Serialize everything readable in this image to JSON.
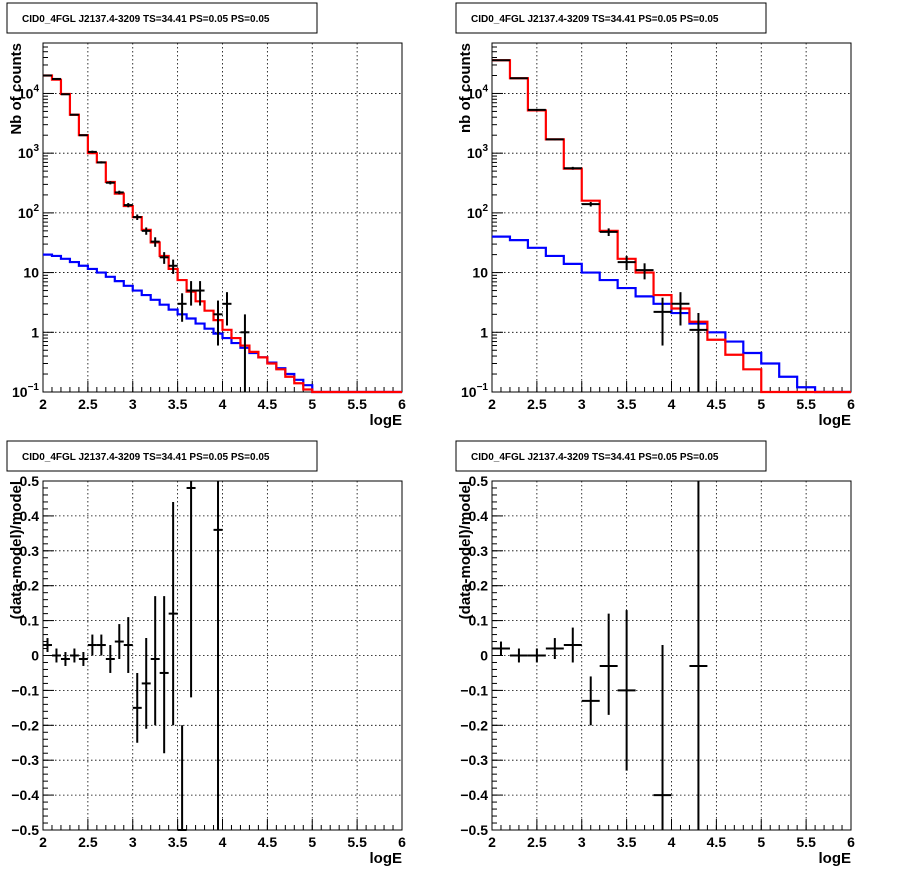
{
  "chart_data": [
    {
      "type": "line",
      "title": "CID0_4FGL J2137.4-3209 TS=34.41 PS=0.05 PS=0.05",
      "xlabel": "logE",
      "ylabel": "Nb of counts",
      "log_y": true,
      "xlim": [
        2,
        6
      ],
      "ylim": [
        0.1,
        70000
      ],
      "grid": true,
      "x_ticks": [
        "2",
        "2.5",
        "3",
        "3.5",
        "4",
        "4.5",
        "5",
        "5.5",
        "6"
      ],
      "y_ticks": [
        {
          "v": 0.1,
          "m": "10",
          "e": "−1"
        },
        {
          "v": 1,
          "m": "1",
          "e": ""
        },
        {
          "v": 10,
          "m": "10",
          "e": ""
        },
        {
          "v": 100,
          "m": "10",
          "e": "2"
        },
        {
          "v": 1000,
          "m": "10",
          "e": "3"
        },
        {
          "v": 10000,
          "m": "10",
          "e": "4"
        }
      ],
      "bin_edges": [
        2,
        2.1,
        2.2,
        2.3,
        2.4,
        2.5,
        2.6,
        2.7,
        2.8,
        2.9,
        3,
        3.1,
        3.2,
        3.3,
        3.4,
        3.5,
        3.6,
        3.7,
        3.8,
        3.9,
        4,
        4.1,
        4.2,
        4.3,
        4.4,
        4.5,
        4.6,
        4.7,
        4.8,
        4.9,
        5,
        5.1,
        5.2,
        5.3,
        5.4,
        5.5,
        5.6,
        5.7,
        5.8,
        5.9,
        6
      ],
      "series": [
        {
          "role": "total_model",
          "color": "#ff0000",
          "values": [
            20000,
            17000,
            9800,
            4400,
            2000,
            1000,
            700,
            330,
            210,
            130,
            85,
            52,
            32,
            19,
            11.5,
            7.5,
            4.8,
            3.3,
            2.3,
            1.6,
            1.1,
            0.8,
            0.6,
            0.47,
            0.38,
            0.3,
            0.24,
            0.18,
            0.14,
            0.11,
            0.1,
            0.1,
            0.1,
            0.1,
            0.1,
            0.1,
            0.1,
            0.1,
            0.1,
            0.1
          ]
        },
        {
          "role": "background_model",
          "color": "#0000ff",
          "values": [
            20,
            19,
            17,
            15,
            13,
            11.5,
            10,
            8.5,
            7.2,
            6,
            5,
            4.2,
            3.5,
            2.9,
            2.4,
            2.0,
            1.7,
            1.4,
            1.15,
            0.95,
            0.8,
            0.66,
            0.55,
            0.45,
            0.38,
            0.31,
            0.25,
            0.2,
            0.16,
            0.13,
            0.1,
            0.1,
            0.1,
            0.1,
            0.1,
            0.1,
            0.1,
            0.1,
            0.1,
            0.1
          ]
        }
      ],
      "points": [
        {
          "x": 2.05,
          "y": 20000,
          "ylo": 19500,
          "yhi": 20500
        },
        {
          "x": 2.15,
          "y": 17500,
          "ylo": 17000,
          "yhi": 18000
        },
        {
          "x": 2.25,
          "y": 9700,
          "ylo": 9500,
          "yhi": 9900
        },
        {
          "x": 2.35,
          "y": 4400,
          "ylo": 4300,
          "yhi": 4500
        },
        {
          "x": 2.45,
          "y": 2000,
          "ylo": 1950,
          "yhi": 2050
        },
        {
          "x": 2.55,
          "y": 1050,
          "ylo": 1000,
          "yhi": 1100
        },
        {
          "x": 2.65,
          "y": 700,
          "ylo": 670,
          "yhi": 730
        },
        {
          "x": 2.75,
          "y": 320,
          "ylo": 300,
          "yhi": 340
        },
        {
          "x": 2.85,
          "y": 220,
          "ylo": 205,
          "yhi": 235
        },
        {
          "x": 2.95,
          "y": 135,
          "ylo": 124,
          "yhi": 146
        },
        {
          "x": 3.05,
          "y": 85,
          "ylo": 76,
          "yhi": 94
        },
        {
          "x": 3.15,
          "y": 50,
          "ylo": 43,
          "yhi": 57
        },
        {
          "x": 3.25,
          "y": 33,
          "ylo": 27,
          "yhi": 39
        },
        {
          "x": 3.35,
          "y": 18,
          "ylo": 14,
          "yhi": 22
        },
        {
          "x": 3.45,
          "y": 13,
          "ylo": 9.5,
          "yhi": 16.5
        },
        {
          "x": 3.55,
          "y": 3,
          "ylo": 1.5,
          "yhi": 4.5
        },
        {
          "x": 3.65,
          "y": 5,
          "ylo": 2.8,
          "yhi": 7.2
        },
        {
          "x": 3.75,
          "y": 5,
          "ylo": 2.8,
          "yhi": 7.2
        },
        {
          "x": 3.95,
          "y": 2,
          "ylo": 0.6,
          "yhi": 3.4
        },
        {
          "x": 4.05,
          "y": 3,
          "ylo": 1.3,
          "yhi": 4.7
        },
        {
          "x": 4.25,
          "y": 1,
          "ylo": 0.1,
          "yhi": 2.0
        }
      ]
    },
    {
      "type": "line",
      "title": "CID0_4FGL J2137.4-3209 TS=34.41 PS=0.05 PS=0.05",
      "xlabel": "logE",
      "ylabel": "nb of counts",
      "log_y": true,
      "xlim": [
        2,
        6
      ],
      "ylim": [
        0.1,
        70000
      ],
      "grid": true,
      "x_ticks": [
        "2",
        "2.5",
        "3",
        "3.5",
        "4",
        "4.5",
        "5",
        "5.5",
        "6"
      ],
      "y_ticks": [
        {
          "v": 0.1,
          "m": "10",
          "e": "−1"
        },
        {
          "v": 1,
          "m": "1",
          "e": ""
        },
        {
          "v": 10,
          "m": "10",
          "e": ""
        },
        {
          "v": 100,
          "m": "10",
          "e": "2"
        },
        {
          "v": 1000,
          "m": "10",
          "e": "3"
        },
        {
          "v": 10000,
          "m": "10",
          "e": "4"
        }
      ],
      "bin_edges": [
        2,
        2.2,
        2.4,
        2.6,
        2.8,
        3,
        3.2,
        3.4,
        3.6,
        3.8,
        4,
        4.2,
        4.4,
        4.6,
        4.8,
        5,
        5.2,
        5.4,
        5.6,
        5.8,
        6
      ],
      "series": [
        {
          "role": "total_model",
          "color": "#ff0000",
          "values": [
            36000,
            18000,
            5200,
            1700,
            550,
            160,
            50,
            17,
            10,
            4.2,
            2.5,
            1.5,
            0.75,
            0.42,
            0.24,
            0.1,
            0.1,
            0.1,
            0.1,
            0.1
          ]
        },
        {
          "role": "background_model",
          "color": "#0000ff",
          "values": [
            40,
            35,
            26,
            19,
            14,
            10,
            7.5,
            5.5,
            4,
            3,
            2.1,
            1.4,
            1.0,
            0.7,
            0.45,
            0.3,
            0.18,
            0.12,
            0.1,
            0.1
          ]
        }
      ],
      "points": [
        {
          "x": 2.1,
          "y": 36000,
          "ylo": 35500,
          "yhi": 36500
        },
        {
          "x": 2.3,
          "y": 18000,
          "ylo": 17700,
          "yhi": 18300
        },
        {
          "x": 2.5,
          "y": 5300,
          "ylo": 5150,
          "yhi": 5450
        },
        {
          "x": 2.7,
          "y": 1700,
          "ylo": 1650,
          "yhi": 1750
        },
        {
          "x": 2.9,
          "y": 560,
          "ylo": 530,
          "yhi": 590
        },
        {
          "x": 3.1,
          "y": 140,
          "ylo": 128,
          "yhi": 152
        },
        {
          "x": 3.3,
          "y": 48,
          "ylo": 41,
          "yhi": 55
        },
        {
          "x": 3.5,
          "y": 15,
          "ylo": 11,
          "yhi": 19
        },
        {
          "x": 3.7,
          "y": 11,
          "ylo": 7.7,
          "yhi": 14.3
        },
        {
          "x": 3.9,
          "y": 2.2,
          "ylo": 0.6,
          "yhi": 3.8
        },
        {
          "x": 4.1,
          "y": 3,
          "ylo": 1.3,
          "yhi": 4.7
        },
        {
          "x": 4.3,
          "y": 1.1,
          "ylo": 0.1,
          "yhi": 2.1
        }
      ]
    },
    {
      "type": "scatter",
      "title": "CID0_4FGL J2137.4-3209 TS=34.41 PS=0.05 PS=0.05",
      "xlabel": "logE",
      "ylabel": "(data-model)/model",
      "log_y": false,
      "xlim": [
        2,
        6
      ],
      "ylim": [
        -0.5,
        0.5
      ],
      "grid": true,
      "x_ticks": [
        "2",
        "2.5",
        "3",
        "3.5",
        "4",
        "4.5",
        "5",
        "5.5",
        "6"
      ],
      "y_ticks": [
        "−0.5",
        "−0.4",
        "−0.3",
        "−0.2",
        "−0.1",
        "0",
        "0.1",
        "0.2",
        "0.3",
        "0.4",
        "0.5"
      ],
      "bin_half_width": 0.05,
      "points": [
        {
          "x": 2.05,
          "y": 0.03,
          "ylo": 0.01,
          "yhi": 0.05
        },
        {
          "x": 2.15,
          "y": 0.0,
          "ylo": -0.02,
          "yhi": 0.02
        },
        {
          "x": 2.25,
          "y": -0.01,
          "ylo": -0.03,
          "yhi": 0.01
        },
        {
          "x": 2.35,
          "y": 0.0,
          "ylo": -0.02,
          "yhi": 0.02
        },
        {
          "x": 2.45,
          "y": -0.01,
          "ylo": -0.03,
          "yhi": 0.01
        },
        {
          "x": 2.55,
          "y": 0.03,
          "ylo": 0.0,
          "yhi": 0.06
        },
        {
          "x": 2.65,
          "y": 0.03,
          "ylo": 0.0,
          "yhi": 0.06
        },
        {
          "x": 2.75,
          "y": -0.01,
          "ylo": -0.05,
          "yhi": 0.03
        },
        {
          "x": 2.85,
          "y": 0.04,
          "ylo": -0.01,
          "yhi": 0.09
        },
        {
          "x": 2.95,
          "y": 0.03,
          "ylo": -0.05,
          "yhi": 0.11
        },
        {
          "x": 3.05,
          "y": -0.15,
          "ylo": -0.25,
          "yhi": -0.05
        },
        {
          "x": 3.15,
          "y": -0.08,
          "ylo": -0.21,
          "yhi": 0.05
        },
        {
          "x": 3.25,
          "y": -0.01,
          "ylo": -0.2,
          "yhi": 0.17
        },
        {
          "x": 3.35,
          "y": -0.05,
          "ylo": -0.28,
          "yhi": 0.17
        },
        {
          "x": 3.45,
          "y": 0.12,
          "ylo": -0.2,
          "yhi": 0.44
        },
        {
          "x": 3.55,
          "y": -0.5,
          "ylo": -0.5,
          "yhi": -0.2
        },
        {
          "x": 3.65,
          "y": 0.48,
          "ylo": -0.12,
          "yhi": 0.5
        },
        {
          "x": 3.95,
          "y": 0.36,
          "ylo": -0.5,
          "yhi": 0.5
        }
      ]
    },
    {
      "type": "scatter",
      "title": "CID0_4FGL J2137.4-3209 TS=34.41 PS=0.05 PS=0.05",
      "xlabel": "logE",
      "ylabel": "(data-model)/model",
      "log_y": false,
      "xlim": [
        2,
        6
      ],
      "ylim": [
        -0.5,
        0.5
      ],
      "grid": true,
      "x_ticks": [
        "2",
        "2.5",
        "3",
        "3.5",
        "4",
        "4.5",
        "5",
        "5.5",
        "6"
      ],
      "y_ticks": [
        "−0.5",
        "−0.4",
        "−0.3",
        "−0.2",
        "−0.1",
        "0",
        "0.1",
        "0.2",
        "0.3",
        "0.4",
        "0.5"
      ],
      "bin_half_width": 0.1,
      "points": [
        {
          "x": 2.1,
          "y": 0.02,
          "ylo": 0.0,
          "yhi": 0.04
        },
        {
          "x": 2.3,
          "y": 0.0,
          "ylo": -0.02,
          "yhi": 0.02
        },
        {
          "x": 2.5,
          "y": 0.0,
          "ylo": -0.02,
          "yhi": 0.02
        },
        {
          "x": 2.7,
          "y": 0.02,
          "ylo": -0.01,
          "yhi": 0.05
        },
        {
          "x": 2.9,
          "y": 0.03,
          "ylo": -0.02,
          "yhi": 0.08
        },
        {
          "x": 3.1,
          "y": -0.13,
          "ylo": -0.2,
          "yhi": -0.06
        },
        {
          "x": 3.3,
          "y": -0.03,
          "ylo": -0.17,
          "yhi": 0.12
        },
        {
          "x": 3.5,
          "y": -0.1,
          "ylo": -0.33,
          "yhi": 0.13
        },
        {
          "x": 3.9,
          "y": -0.4,
          "ylo": -0.5,
          "yhi": 0.03
        },
        {
          "x": 4.3,
          "y": -0.03,
          "ylo": -0.5,
          "yhi": 0.5
        }
      ]
    }
  ]
}
